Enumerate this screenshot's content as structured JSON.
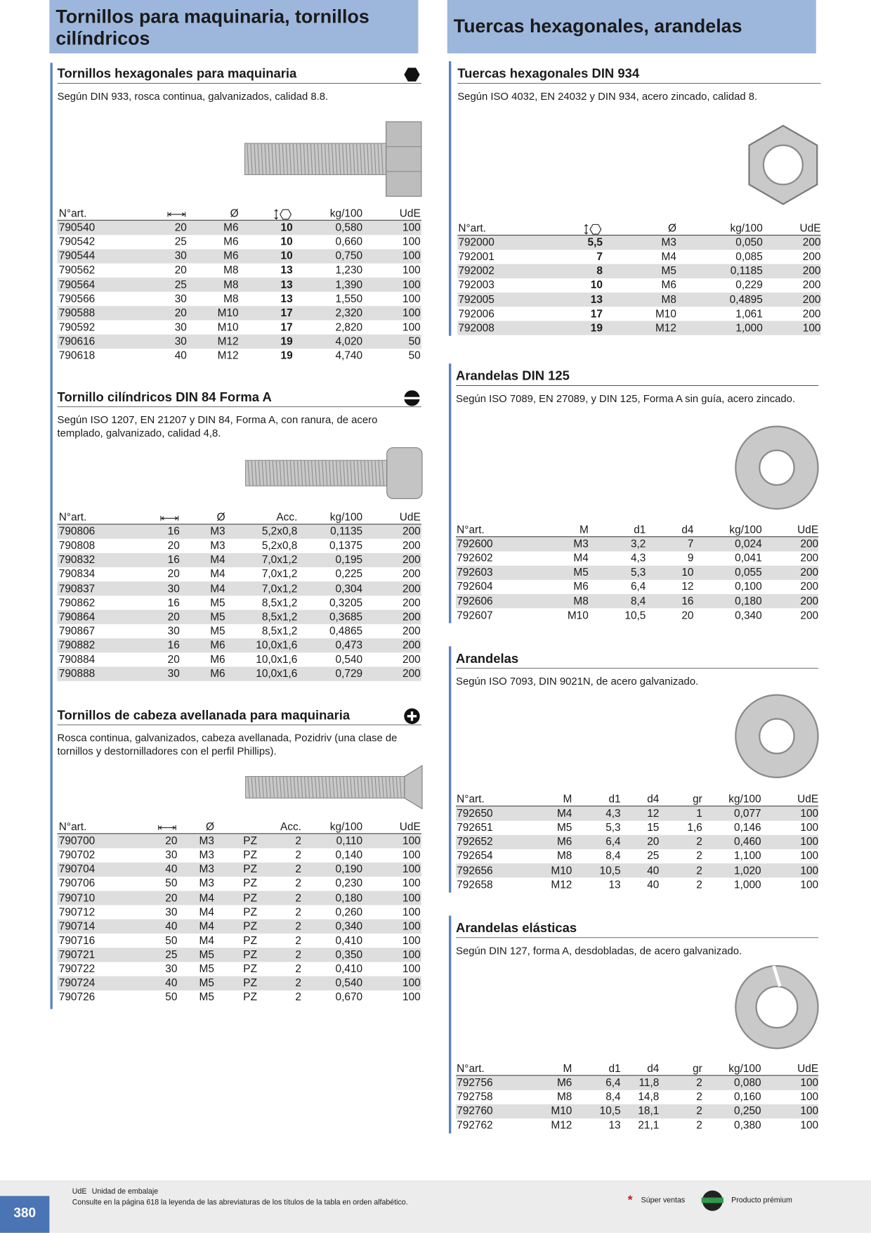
{
  "header": {
    "left_title": "Tornillos para maquinaria, tornillos cilíndricos",
    "right_title": "Tuercas hexagonales, arandelas"
  },
  "sections": [
    {
      "title": "Tornillos hexagonales para maquinaria",
      "description": "Según DIN 933, rosca continua, galvanizados, calidad 8.8.",
      "table": {
        "columns": [
          "N°art.",
          {
            "icon": "length"
          },
          "Ø",
          {
            "icon": "hex"
          },
          "kg/100",
          "UdE"
        ],
        "bold_column": 3,
        "rows": [
          [
            "790540",
            "20",
            "M6",
            "10",
            "0,580",
            "100"
          ],
          [
            "790542",
            "25",
            "M6",
            "10",
            "0,660",
            "100"
          ],
          [
            "790544",
            "30",
            "M6",
            "10",
            "0,750",
            "100"
          ],
          [
            "790562",
            "20",
            "M8",
            "13",
            "1,230",
            "100"
          ],
          [
            "790564",
            "25",
            "M8",
            "13",
            "1,390",
            "100"
          ],
          [
            "790566",
            "30",
            "M8",
            "13",
            "1,550",
            "100"
          ],
          [
            "790588",
            "20",
            "M10",
            "17",
            "2,320",
            "100"
          ],
          [
            "790592",
            "30",
            "M10",
            "17",
            "2,820",
            "100"
          ],
          [
            "790616",
            "30",
            "M12",
            "19",
            "4,020",
            "50"
          ],
          [
            "790618",
            "40",
            "M12",
            "19",
            "4,740",
            "50"
          ]
        ]
      }
    },
    {
      "title": "Tornillo cilíndricos DIN 84 Forma A",
      "description": "Según ISO 1207, EN 21207 y DIN 84, Forma A, con ranura, de acero templado, galvanizado, calidad 4,8.",
      "table": {
        "columns": [
          "N°art.",
          {
            "icon": "length"
          },
          "Ø",
          "Acc.",
          "kg/100",
          "UdE"
        ],
        "rows": [
          [
            "790806",
            "16",
            "M3",
            "5,2x0,8",
            "0,1135",
            "200"
          ],
          [
            "790808",
            "20",
            "M3",
            "5,2x0,8",
            "0,1375",
            "200"
          ],
          [
            "790832",
            "16",
            "M4",
            "7,0x1,2",
            "0,195",
            "200"
          ],
          [
            "790834",
            "20",
            "M4",
            "7,0x1,2",
            "0,225",
            "200"
          ],
          [
            "790837",
            "30",
            "M4",
            "7,0x1,2",
            "0,304",
            "200"
          ],
          [
            "790862",
            "16",
            "M5",
            "8,5x1,2",
            "0,3205",
            "200"
          ],
          [
            "790864",
            "20",
            "M5",
            "8,5x1,2",
            "0,3685",
            "200"
          ],
          [
            "790867",
            "30",
            "M5",
            "8,5x1,2",
            "0,4865",
            "200"
          ],
          [
            "790882",
            "16",
            "M6",
            "10,0x1,6",
            "0,473",
            "200"
          ],
          [
            "790884",
            "20",
            "M6",
            "10,0x1,6",
            "0,540",
            "200"
          ],
          [
            "790888",
            "30",
            "M6",
            "10,0x1,6",
            "0,729",
            "200"
          ]
        ]
      }
    },
    {
      "title": "Tornillos de cabeza avellanada para maquinaria",
      "description": "Rosca continua, galvanizados, cabeza avellanada, Pozidriv (una clase de tornillos y destornilladores con el perfil Phillips).",
      "table": {
        "columns": [
          "N°art.",
          {
            "icon": "length"
          },
          "Ø",
          null,
          "Acc.",
          "kg/100",
          "UdE"
        ],
        "rows": [
          [
            "790700",
            "20",
            "M3",
            "PZ",
            "2",
            "0,110",
            "100"
          ],
          [
            "790702",
            "30",
            "M3",
            "PZ",
            "2",
            "0,140",
            "100"
          ],
          [
            "790704",
            "40",
            "M3",
            "PZ",
            "2",
            "0,190",
            "100"
          ],
          [
            "790706",
            "50",
            "M3",
            "PZ",
            "2",
            "0,230",
            "100"
          ],
          [
            "790710",
            "20",
            "M4",
            "PZ",
            "2",
            "0,180",
            "100"
          ],
          [
            "790712",
            "30",
            "M4",
            "PZ",
            "2",
            "0,260",
            "100"
          ],
          [
            "790714",
            "40",
            "M4",
            "PZ",
            "2",
            "0,340",
            "100"
          ],
          [
            "790716",
            "50",
            "M4",
            "PZ",
            "2",
            "0,410",
            "100"
          ],
          [
            "790721",
            "25",
            "M5",
            "PZ",
            "2",
            "0,350",
            "100"
          ],
          [
            "790722",
            "30",
            "M5",
            "PZ",
            "2",
            "0,410",
            "100"
          ],
          [
            "790724",
            "40",
            "M5",
            "PZ",
            "2",
            "0,540",
            "100"
          ],
          [
            "790726",
            "50",
            "M5",
            "PZ",
            "2",
            "0,670",
            "100"
          ]
        ]
      }
    },
    {
      "title": "Tuercas hexagonales DIN 934",
      "description": "Según ISO 4032, EN 24032 y DIN 934, acero zincado, calidad 8.",
      "table": {
        "columns": [
          "N°art.",
          {
            "icon": "hex"
          },
          "Ø",
          "kg/100",
          "UdE"
        ],
        "bold_column": 1,
        "rows": [
          [
            "792000",
            "5,5",
            "M3",
            "0,050",
            "200"
          ],
          [
            "792001",
            "7",
            "M4",
            "0,085",
            "200"
          ],
          [
            "792002",
            "8",
            "M5",
            "0,1185",
            "200"
          ],
          [
            "792003",
            "10",
            "M6",
            "0,229",
            "200"
          ],
          [
            "792005",
            "13",
            "M8",
            "0,4895",
            "200"
          ],
          [
            "792006",
            "17",
            "M10",
            "1,061",
            "200"
          ],
          [
            "792008",
            "19",
            "M12",
            "1,000",
            "100"
          ]
        ]
      }
    },
    {
      "title": "Arandelas DIN 125",
      "description": "Según ISO 7089, EN 27089, y DIN 125, Forma A sin guía, acero zincado.",
      "table": {
        "columns": [
          "N°art.",
          "M",
          "d1",
          "d4",
          "kg/100",
          "UdE"
        ],
        "rows": [
          [
            "792600",
            "M3",
            "3,2",
            "7",
            "0,024",
            "200"
          ],
          [
            "792602",
            "M4",
            "4,3",
            "9",
            "0,041",
            "200"
          ],
          [
            "792603",
            "M5",
            "5,3",
            "10",
            "0,055",
            "200"
          ],
          [
            "792604",
            "M6",
            "6,4",
            "12",
            "0,100",
            "200"
          ],
          [
            "792606",
            "M8",
            "8,4",
            "16",
            "0,180",
            "200"
          ],
          [
            "792607",
            "M10",
            "10,5",
            "20",
            "0,340",
            "200"
          ]
        ]
      }
    },
    {
      "title": "Arandelas",
      "description": "Según ISO 7093, DIN 9021N, de acero galvanizado.",
      "table": {
        "columns": [
          "N°art.",
          "M",
          "d1",
          "d4",
          "gr",
          "kg/100",
          "UdE"
        ],
        "rows": [
          [
            "792650",
            "M4",
            "4,3",
            "12",
            "1",
            "0,077",
            "100"
          ],
          [
            "792651",
            "M5",
            "5,3",
            "15",
            "1,6",
            "0,146",
            "100"
          ],
          [
            "792652",
            "M6",
            "6,4",
            "20",
            "2",
            "0,460",
            "100"
          ],
          [
            "792654",
            "M8",
            "8,4",
            "25",
            "2",
            "1,100",
            "100"
          ],
          [
            "792656",
            "M10",
            "10,5",
            "40",
            "2",
            "1,020",
            "100"
          ],
          [
            "792658",
            "M12",
            "13",
            "40",
            "2",
            "1,000",
            "100"
          ]
        ]
      }
    },
    {
      "title": "Arandelas elásticas",
      "description": "Según DIN 127, forma A, desdobladas, de acero galvanizado.",
      "table": {
        "columns": [
          "N°art.",
          "M",
          "d1",
          "d4",
          "gr",
          "kg/100",
          "UdE"
        ],
        "rows": [
          [
            "792756",
            "M6",
            "6,4",
            "11,8",
            "2",
            "0,080",
            "100"
          ],
          [
            "792758",
            "M8",
            "8,4",
            "14,8",
            "2",
            "0,160",
            "100"
          ],
          [
            "792760",
            "M10",
            "10,5",
            "18,1",
            "2",
            "0,250",
            "100"
          ],
          [
            "792762",
            "M12",
            "13",
            "21,1",
            "2",
            "0,380",
            "100"
          ]
        ]
      }
    }
  ],
  "footer": {
    "abbr": "UdE",
    "abbr_meaning": "Unidad de embalaje",
    "note": "Consulte en la página 618 la leyenda de las abreviaturas de los títulos de la tabla en orden alfabético.",
    "best_seller": "Súper ventas",
    "premium": "Producto prémium",
    "page_number": "380"
  }
}
